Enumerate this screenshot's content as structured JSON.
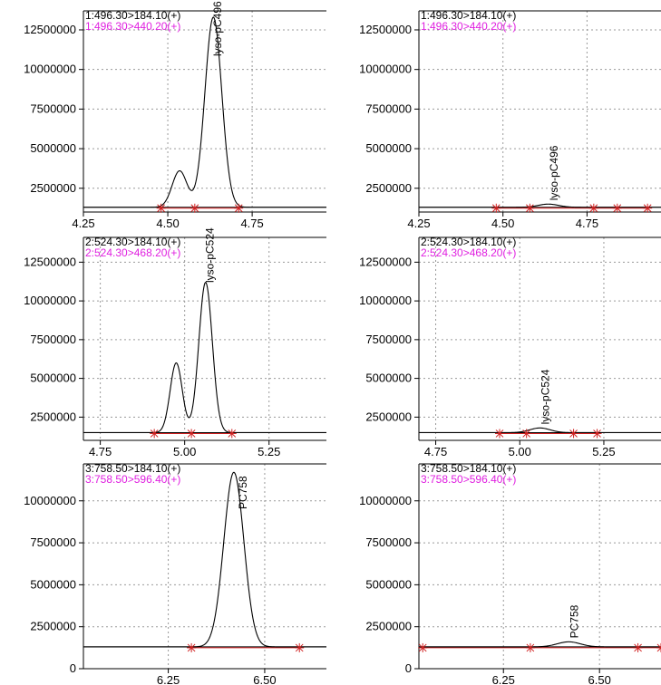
{
  "chart_data": [
    {
      "type": "line",
      "title": "1:496.30>184.10(+)",
      "subtitle": "1:496.30>440.20(+)",
      "colors": {
        "title": "#000000",
        "subtitle": "#e020e0",
        "trace": "#000000",
        "baseline": "#d02020",
        "marker": "#d02020",
        "grid": "#9a9a9a"
      },
      "xlim": [
        4.25,
        4.97
      ],
      "ylim": [
        1000000,
        13700000
      ],
      "xticks": [
        "4.25",
        "4.50",
        "4.75"
      ],
      "yticks": [
        "2500000",
        "5000000",
        "7500000",
        "10000000",
        "12500000"
      ],
      "baseline": 1300000,
      "peaks": [
        {
          "rt": 4.535,
          "height": 3600000,
          "w": 0.022
        },
        {
          "rt": 4.635,
          "height": 13300000,
          "w": 0.025
        }
      ],
      "markers": [
        4.48,
        4.58,
        4.71
      ],
      "annotation": {
        "text": "lyso-pC496",
        "x": 4.632
      }
    },
    {
      "type": "line",
      "title": "1:496.30>184.10(+)",
      "subtitle": "1:496.30>440.20(+)",
      "colors": {
        "title": "#000000",
        "subtitle": "#e020e0",
        "trace": "#000000",
        "baseline": "#d02020",
        "marker": "#d02020",
        "grid": "#9a9a9a"
      },
      "xlim": [
        4.25,
        4.97
      ],
      "ylim": [
        1000000,
        13700000
      ],
      "xticks": [
        "4.25",
        "4.50",
        "4.75"
      ],
      "yticks": [
        "2500000",
        "5000000",
        "7500000",
        "10000000",
        "12500000"
      ],
      "baseline": 1300000,
      "peaks": [
        {
          "rt": 4.635,
          "height": 1500000,
          "w": 0.03
        }
      ],
      "markers": [
        4.48,
        4.58,
        4.77,
        4.84,
        4.93
      ],
      "annotation": {
        "text": "lyso-pC496",
        "x": 4.635
      }
    },
    {
      "type": "line",
      "title": "2:524.30>184.10(+)",
      "subtitle": "2:524.30>468.20(+)",
      "colors": {
        "title": "#000000",
        "subtitle": "#e020e0",
        "trace": "#000000",
        "baseline": "#d02020",
        "marker": "#d02020",
        "grid": "#9a9a9a"
      },
      "xlim": [
        4.7,
        5.42
      ],
      "ylim": [
        1000000,
        14100000
      ],
      "xticks": [
        "4.75",
        "5.00",
        "5.25"
      ],
      "yticks": [
        "2500000",
        "5000000",
        "7500000",
        "10000000",
        "12500000"
      ],
      "baseline": 1500000,
      "peaks": [
        {
          "rt": 4.975,
          "height": 6000000,
          "w": 0.018
        },
        {
          "rt": 5.062,
          "height": 11200000,
          "w": 0.02
        }
      ],
      "markers": [
        4.91,
        5.02,
        5.14
      ],
      "annotation": {
        "text": "lyso-pC524",
        "x": 5.058
      }
    },
    {
      "type": "line",
      "title": "2:524.30>184.10(+)",
      "subtitle": "2:524.30>468.20(+)",
      "colors": {
        "title": "#000000",
        "subtitle": "#e020e0",
        "trace": "#000000",
        "baseline": "#d02020",
        "marker": "#d02020",
        "grid": "#9a9a9a"
      },
      "xlim": [
        4.7,
        5.42
      ],
      "ylim": [
        1000000,
        14100000
      ],
      "xticks": [
        "4.75",
        "5.00",
        "5.25"
      ],
      "yticks": [
        "2500000",
        "5000000",
        "7500000",
        "10000000",
        "12500000"
      ],
      "baseline": 1500000,
      "peaks": [
        {
          "rt": 5.06,
          "height": 1800000,
          "w": 0.03
        }
      ],
      "markers": [
        4.94,
        5.02,
        5.16,
        5.23
      ],
      "annotation": {
        "text": "lyso-pC524",
        "x": 5.06
      }
    },
    {
      "type": "line",
      "title": "3:758.50>184.10(+)",
      "subtitle": "3:758.50>596.40(+)",
      "colors": {
        "title": "#000000",
        "subtitle": "#e020e0",
        "trace": "#000000",
        "baseline": "#d02020",
        "marker": "#d02020",
        "grid": "#9a9a9a"
      },
      "xlim": [
        6.03,
        6.66
      ],
      "ylim": [
        0,
        12200000
      ],
      "xticks": [
        "6.25",
        "6.50"
      ],
      "yticks": [
        "0",
        "2500000",
        "5000000",
        "7500000",
        "10000000"
      ],
      "baseline": 1300000,
      "peaks": [
        {
          "rt": 6.42,
          "height": 11700000,
          "w": 0.026
        }
      ],
      "markers": [
        6.31,
        6.59
      ],
      "annotation": {
        "text": "PC758",
        "x": 6.43
      }
    },
    {
      "type": "line",
      "title": "3:758.50>184.10(+)",
      "subtitle": "3:758.50>596.40(+)",
      "colors": {
        "title": "#000000",
        "subtitle": "#e020e0",
        "trace": "#000000",
        "baseline": "#d02020",
        "marker": "#d02020",
        "grid": "#9a9a9a"
      },
      "xlim": [
        6.03,
        6.66
      ],
      "ylim": [
        0,
        12200000
      ],
      "xticks": [
        "6.25",
        "6.50"
      ],
      "yticks": [
        "0",
        "2500000",
        "5000000",
        "7500000",
        "10000000"
      ],
      "baseline": 1300000,
      "peaks": [
        {
          "rt": 6.42,
          "height": 1600000,
          "w": 0.03
        }
      ],
      "markers": [
        6.04,
        6.32,
        6.6,
        6.66
      ],
      "annotation": {
        "text": "PC758",
        "x": 6.42
      }
    }
  ]
}
